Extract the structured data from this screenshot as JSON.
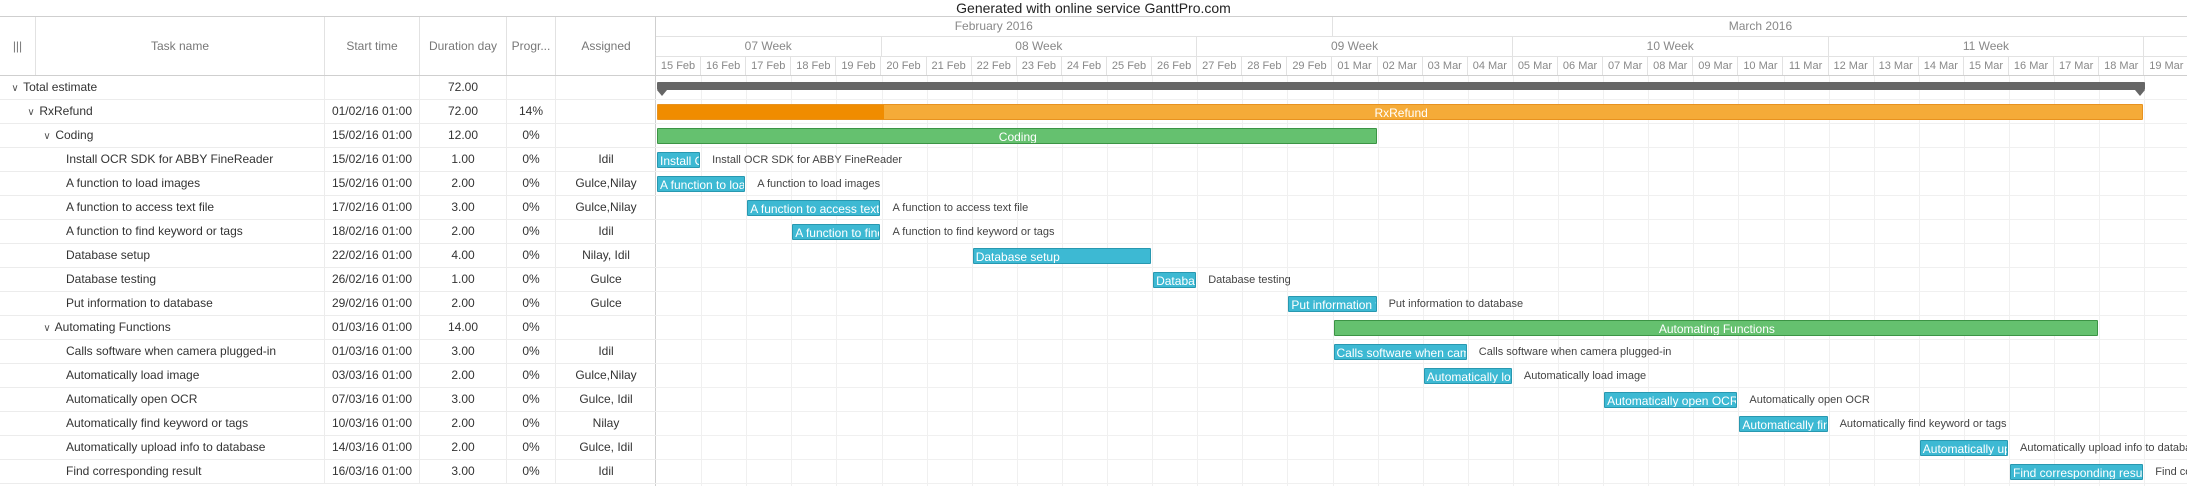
{
  "title": "Generated with online service GanttPro.com",
  "grid": {
    "header": {
      "handle": "|||",
      "task_name": "Task name",
      "start_time": "Start time",
      "duration": "Duration day",
      "progress": "Progr...",
      "assigned": "Assigned"
    },
    "rows": [
      {
        "level": 0,
        "chevron": "∨",
        "name": "Total estimate",
        "start": "",
        "dur": "72.00",
        "prog": "",
        "asg": ""
      },
      {
        "level": 1,
        "chevron": "∨",
        "name": "RxRefund",
        "start": "01/02/16 01:00",
        "dur": "72.00",
        "prog": "14%",
        "asg": ""
      },
      {
        "level": 2,
        "chevron": "∨",
        "name": "Coding",
        "start": "15/02/16 01:00",
        "dur": "12.00",
        "prog": "0%",
        "asg": ""
      },
      {
        "level": 3,
        "chevron": "",
        "name": "Install OCR SDK for ABBY FineReader",
        "start": "15/02/16 01:00",
        "dur": "1.00",
        "prog": "0%",
        "asg": "Idil"
      },
      {
        "level": 3,
        "chevron": "",
        "name": "A function to load images",
        "start": "15/02/16 01:00",
        "dur": "2.00",
        "prog": "0%",
        "asg": "Gulce,Nilay"
      },
      {
        "level": 3,
        "chevron": "",
        "name": "A function to access text file",
        "start": "17/02/16 01:00",
        "dur": "3.00",
        "prog": "0%",
        "asg": "Gulce,Nilay"
      },
      {
        "level": 3,
        "chevron": "",
        "name": "A function to find keyword or tags",
        "start": "18/02/16 01:00",
        "dur": "2.00",
        "prog": "0%",
        "asg": "Idil"
      },
      {
        "level": 3,
        "chevron": "",
        "name": "Database setup",
        "start": "22/02/16 01:00",
        "dur": "4.00",
        "prog": "0%",
        "asg": "Nilay, Idil"
      },
      {
        "level": 3,
        "chevron": "",
        "name": "Database testing",
        "start": "26/02/16 01:00",
        "dur": "1.00",
        "prog": "0%",
        "asg": "Gulce"
      },
      {
        "level": 3,
        "chevron": "",
        "name": "Put information to database",
        "start": "29/02/16 01:00",
        "dur": "2.00",
        "prog": "0%",
        "asg": "Gulce"
      },
      {
        "level": 2,
        "chevron": "∨",
        "name": "Automating Functions",
        "start": "01/03/16 01:00",
        "dur": "14.00",
        "prog": "0%",
        "asg": ""
      },
      {
        "level": 3,
        "chevron": "",
        "name": "Calls software when camera plugged-in",
        "start": "01/03/16 01:00",
        "dur": "3.00",
        "prog": "0%",
        "asg": "Idil"
      },
      {
        "level": 3,
        "chevron": "",
        "name": "Automatically load image",
        "start": "03/03/16 01:00",
        "dur": "2.00",
        "prog": "0%",
        "asg": "Gulce,Nilay"
      },
      {
        "level": 3,
        "chevron": "",
        "name": "Automatically open OCR",
        "start": "07/03/16 01:00",
        "dur": "3.00",
        "prog": "0%",
        "asg": "Gulce, Idil"
      },
      {
        "level": 3,
        "chevron": "",
        "name": "Automatically find keyword or tags",
        "start": "10/03/16 01:00",
        "dur": "2.00",
        "prog": "0%",
        "asg": "Nilay"
      },
      {
        "level": 3,
        "chevron": "",
        "name": "Automatically upload info to database",
        "start": "14/03/16 01:00",
        "dur": "2.00",
        "prog": "0%",
        "asg": "Gulce, Idil"
      },
      {
        "level": 3,
        "chevron": "",
        "name": "Find corresponding result",
        "start": "16/03/16 01:00",
        "dur": "3.00",
        "prog": "0%",
        "asg": "Idil"
      }
    ]
  },
  "scale": {
    "months": [
      {
        "label": "February 2016",
        "first_day": "15 Feb",
        "days": 15
      },
      {
        "label": "March 2016",
        "first_day": "01 Mar",
        "days": 19
      }
    ],
    "weeks": [
      {
        "label": "07 Week",
        "days": 5
      },
      {
        "label": "08 Week",
        "days": 7
      },
      {
        "label": "09 Week",
        "days": 7
      },
      {
        "label": "10 Week",
        "days": 7
      },
      {
        "label": "11 Week",
        "days": 7
      },
      {
        "label": "",
        "days": 1
      }
    ],
    "days": [
      "15 Feb",
      "16 Feb",
      "17 Feb",
      "18 Feb",
      "19 Feb",
      "20 Feb",
      "21 Feb",
      "22 Feb",
      "23 Feb",
      "24 Feb",
      "25 Feb",
      "26 Feb",
      "27 Feb",
      "28 Feb",
      "29 Feb",
      "01 Mar",
      "02 Mar",
      "03 Mar",
      "04 Mar",
      "05 Mar",
      "06 Mar",
      "07 Mar",
      "08 Mar",
      "09 Mar",
      "10 Mar",
      "11 Mar",
      "12 Mar",
      "13 Mar",
      "14 Mar",
      "15 Mar",
      "16 Mar",
      "17 Mar",
      "18 Mar",
      "19 Mar"
    ]
  },
  "bars": [
    {
      "row": 0,
      "kind": "total",
      "start_day": "15 Feb",
      "end_day": "19 Mar",
      "label": ""
    },
    {
      "row": 1,
      "kind": "rx",
      "start_day": "15 Feb",
      "end_day": "19 Mar",
      "label": "RxRefund",
      "progress_until": "20 Feb"
    },
    {
      "row": 2,
      "kind": "project",
      "start_day": "15 Feb",
      "end_day": "02 Mar",
      "label": "Coding"
    },
    {
      "row": 3,
      "kind": "task",
      "start_day": "15 Feb",
      "end_day": "16 Feb",
      "label": "Install OCR SDK for ABBY FineReader",
      "side": "Install OCR SDK for ABBY FineReader"
    },
    {
      "row": 4,
      "kind": "task",
      "start_day": "15 Feb",
      "end_day": "17 Feb",
      "label": "A function to load images",
      "side": "A function to load images"
    },
    {
      "row": 5,
      "kind": "task",
      "start_day": "17 Feb",
      "end_day": "20 Feb",
      "label": "A function to access text file",
      "side": "A function to access text file"
    },
    {
      "row": 6,
      "kind": "task",
      "start_day": "18 Feb",
      "end_day": "20 Feb",
      "label": "A function to find keyword or tags",
      "side": "A function to find keyword or tags"
    },
    {
      "row": 7,
      "kind": "task",
      "start_day": "22 Feb",
      "end_day": "26 Feb",
      "label": "Database setup",
      "side": ""
    },
    {
      "row": 8,
      "kind": "task",
      "start_day": "26 Feb",
      "end_day": "27 Feb",
      "label": "Database testing",
      "side": "Database testing"
    },
    {
      "row": 9,
      "kind": "task",
      "start_day": "29 Feb",
      "end_day": "02 Mar",
      "label": "Put information to database",
      "side": "Put information to database"
    },
    {
      "row": 10,
      "kind": "project",
      "start_day": "01 Mar",
      "end_day": "18 Mar",
      "label": "Automating Functions"
    },
    {
      "row": 11,
      "kind": "task",
      "start_day": "01 Mar",
      "end_day": "04 Mar",
      "label": "Calls software when camera plugged-in",
      "side": "Calls software when camera plugged-in"
    },
    {
      "row": 12,
      "kind": "task",
      "start_day": "03 Mar",
      "end_day": "05 Mar",
      "label": "Automatically load image",
      "side": "Automatically load image"
    },
    {
      "row": 13,
      "kind": "task",
      "start_day": "07 Mar",
      "end_day": "10 Mar",
      "label": "Automatically open OCR",
      "side": "Automatically open OCR"
    },
    {
      "row": 14,
      "kind": "task",
      "start_day": "10 Mar",
      "end_day": "12 Mar",
      "label": "Automatically find keyword or tags",
      "side": "Automatically find keyword or tags"
    },
    {
      "row": 15,
      "kind": "task",
      "start_day": "14 Mar",
      "end_day": "16 Mar",
      "label": "Automatically upload info to database",
      "side": "Automatically upload info to database"
    },
    {
      "row": 16,
      "kind": "task",
      "start_day": "16 Mar",
      "end_day": "19 Mar",
      "label": "Find corresponding result",
      "side": "Find corresponding result"
    }
  ],
  "colors": {
    "task": "#3db9d3",
    "project": "#65c16f",
    "rx": "#f5ab38",
    "rx_progress": "#f08c00",
    "total": "#666666"
  }
}
